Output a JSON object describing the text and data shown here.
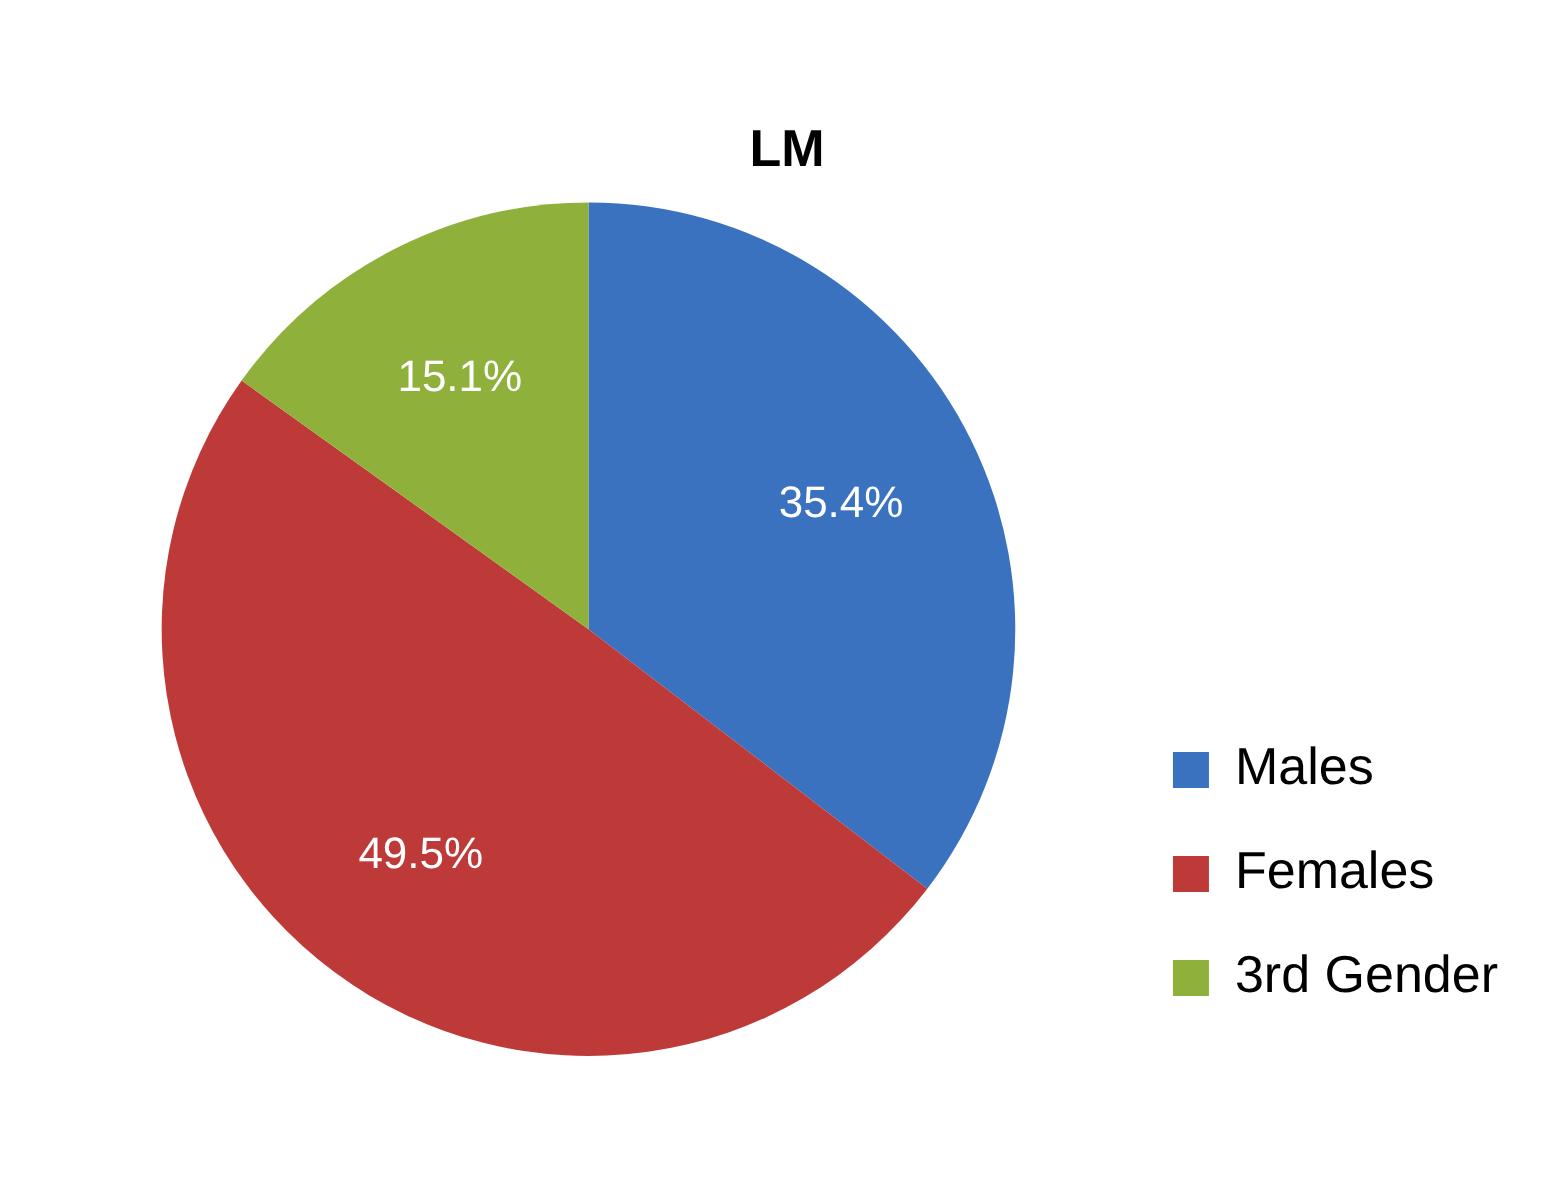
{
  "chart_data": {
    "type": "pie",
    "title": "LM",
    "categories": [
      "Males",
      "Females",
      "3rd Gender"
    ],
    "values": [
      35.4,
      49.5,
      15.1
    ],
    "colors": [
      "#3a72c0",
      "#be3a38",
      "#8fb13c"
    ],
    "value_labels": [
      "35.4%",
      "49.5%",
      "15.1%"
    ],
    "legend": "right"
  }
}
